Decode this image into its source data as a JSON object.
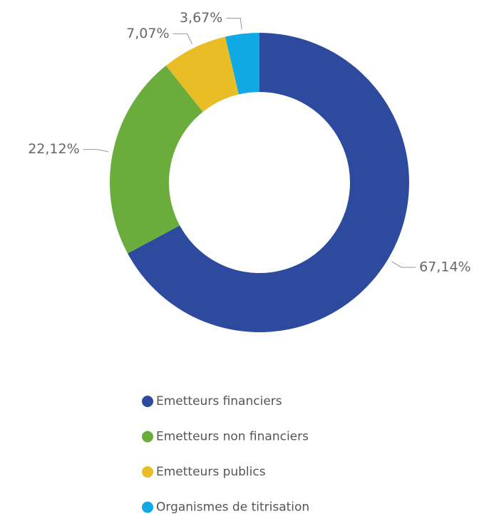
{
  "chart_data": {
    "type": "pie",
    "categories": [
      "Emetteurs financiers",
      "Emetteurs non financiers",
      "Emetteurs publics",
      "Organismes de titrisation"
    ],
    "values": [
      67.14,
      22.12,
      7.07,
      3.67
    ],
    "value_labels": [
      "67,14%",
      "22,12%",
      "7,07%",
      "3,67%"
    ],
    "colors": [
      "#2e4a9e",
      "#6aad3d",
      "#e8bd26",
      "#0fa9e6"
    ],
    "donut": true
  }
}
